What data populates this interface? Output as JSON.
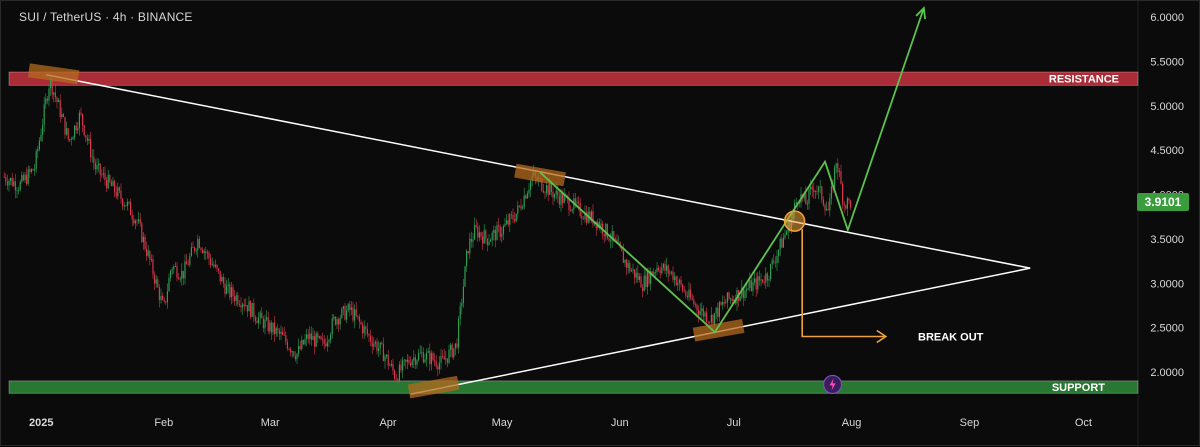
{
  "header": {
    "title": "SUI / TetherUS · 4h · BINANCE"
  },
  "price_tag": {
    "value": "3.9101"
  },
  "colors": {
    "background": "#0b0b0b",
    "up_candle": "#2e9e55",
    "down_candle": "#d9364b",
    "resistance_zone": "#c7323f",
    "support_zone": "#2e8b3a",
    "trendline": "#ffffff",
    "path_line": "#5cc24f",
    "breakout_arrow": "#f0a23a",
    "pivot_highlight": "#b36a1e"
  },
  "chart_data": {
    "type": "line",
    "title": "SUI / TetherUS · 4h · BINANCE",
    "xlabel": "",
    "ylabel": "",
    "x_tick_labels": [
      "2025",
      "Feb",
      "Mar",
      "Apr",
      "May",
      "Jun",
      "Jul",
      "Aug",
      "Sep",
      "Oct"
    ],
    "y_tick_labels": [
      "6.0000",
      "5.5000",
      "5.0000",
      "4.5000",
      "4.0000",
      "3.5000",
      "3.0000",
      "2.5000",
      "2.0000"
    ],
    "ylim": [
      1.65,
      6.15
    ],
    "grid": false,
    "series": [
      {
        "name": "",
        "x": [
          "2024-12-21",
          "2024-12-25",
          "2024-12-29",
          "2025-01-02",
          "2025-01-05",
          "2025-01-07",
          "2025-01-10",
          "2025-01-14",
          "2025-01-18",
          "2025-01-22",
          "2025-01-25",
          "2025-01-28",
          "2025-02-01",
          "2025-02-03",
          "2025-02-06",
          "2025-02-10",
          "2025-02-14",
          "2025-02-18",
          "2025-02-22",
          "2025-02-26",
          "2025-03-01",
          "2025-03-04",
          "2025-03-08",
          "2025-03-11",
          "2025-03-15",
          "2025-03-18",
          "2025-03-22",
          "2025-03-27",
          "2025-03-31",
          "2025-04-03",
          "2025-04-07",
          "2025-04-10",
          "2025-04-15",
          "2025-04-19",
          "2025-04-22",
          "2025-04-24",
          "2025-04-27",
          "2025-05-01",
          "2025-05-05",
          "2025-05-09",
          "2025-05-12",
          "2025-05-15",
          "2025-05-19",
          "2025-05-22",
          "2025-05-26",
          "2025-05-30",
          "2025-06-03",
          "2025-06-07",
          "2025-06-11",
          "2025-06-15",
          "2025-06-18",
          "2025-06-22",
          "2025-06-25",
          "2025-06-29",
          "2025-07-03",
          "2025-07-07",
          "2025-07-10",
          "2025-07-13",
          "2025-07-16",
          "2025-07-18",
          "2025-07-20",
          "2025-07-22",
          "2025-07-24",
          "2025-07-26",
          "2025-07-28",
          "2025-07-30",
          "2025-08-01"
        ],
        "y": [
          4.2,
          4.1,
          4.3,
          5.3,
          4.9,
          4.6,
          4.9,
          4.3,
          4.1,
          3.9,
          3.7,
          3.3,
          2.7,
          3.2,
          3.1,
          3.5,
          3.2,
          2.9,
          2.8,
          2.6,
          2.5,
          2.4,
          2.2,
          2.4,
          2.3,
          2.6,
          2.7,
          2.4,
          2.2,
          1.95,
          2.15,
          2.2,
          2.1,
          2.3,
          3.4,
          3.6,
          3.5,
          3.6,
          3.8,
          4.2,
          4.1,
          4.0,
          3.9,
          3.8,
          3.7,
          3.5,
          3.2,
          3.0,
          3.2,
          3.1,
          2.9,
          2.7,
          2.6,
          2.8,
          2.9,
          3.0,
          3.1,
          3.4,
          3.7,
          4.0,
          3.9,
          4.1,
          4.0,
          3.8,
          4.4,
          3.9,
          3.9101
        ]
      }
    ],
    "levels": [
      {
        "name": "RESISTANCE",
        "low": 5.23,
        "high": 5.38
      },
      {
        "name": "SUPPORT",
        "low": 1.76,
        "high": 1.9
      }
    ],
    "annotations": [
      {
        "text": "RESISTANCE"
      },
      {
        "text": "SUPPORT"
      },
      {
        "text": "BREAK OUT"
      }
    ],
    "trendlines": [
      {
        "from": [
          "2025-01-01",
          5.35
        ],
        "to": [
          "2025-09-17",
          3.17
        ]
      },
      {
        "from": [
          "2025-04-07",
          1.75
        ],
        "to": [
          "2025-09-17",
          3.17
        ]
      }
    ],
    "projection_path": [
      [
        "2025-05-11",
        4.25
      ],
      [
        "2025-06-26",
        2.45
      ],
      [
        "2025-07-25",
        4.37
      ],
      [
        "2025-07-31",
        3.6
      ],
      [
        "2025-08-20",
        6.1
      ]
    ]
  }
}
